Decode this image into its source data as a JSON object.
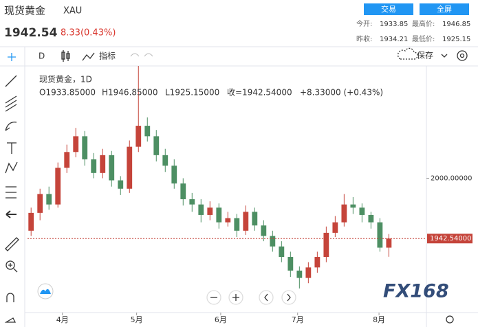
{
  "header": {
    "name": "现货黄金",
    "symbol": "XAU",
    "price": "1942.54",
    "change": "8.33(0.43%)",
    "buttons": [
      "交易",
      "全屏"
    ],
    "stats": [
      [
        "今开:",
        "1933.85"
      ],
      [
        "最高价:",
        "1946.85"
      ],
      [
        "昨收:",
        "1934.21"
      ],
      [
        "最低价:",
        "1925.15"
      ]
    ]
  },
  "toolbar": {
    "interval": "D",
    "indicators": "指标",
    "save": "保存"
  },
  "legend": {
    "title": "现货黄金，1D",
    "open": "O1933.85000",
    "high": "H1946.85000",
    "low": "L1925.15000",
    "close": "收=1942.54000",
    "change": "+8.33000 (+0.43%)"
  },
  "watermark": "FX168",
  "chart_data": {
    "type": "candlestick",
    "up_color": "#c5443a",
    "down_color": "#4d8f63",
    "x": [
      0,
      1,
      2,
      3,
      4,
      5,
      6,
      7,
      8,
      9,
      10,
      11,
      12,
      13,
      14,
      15,
      16,
      17,
      18,
      19,
      20,
      21,
      22,
      23,
      24,
      25,
      26,
      27,
      28,
      29,
      30,
      31,
      32,
      33,
      34,
      35,
      36,
      37,
      38,
      39,
      40
    ],
    "open": [
      1950,
      1967,
      1985,
      1975,
      2010,
      2025,
      2040,
      2018,
      2005,
      2022,
      1998,
      1990,
      2030,
      2050,
      2040,
      2022,
      2012,
      1995,
      1980,
      1975,
      1965,
      1972,
      1958,
      1962,
      1950,
      1968,
      1955,
      1945,
      1935,
      1925,
      1912,
      1905,
      1915,
      1925,
      1948,
      1958,
      1975,
      1972,
      1965,
      1958,
      1933.85
    ],
    "high": [
      1972,
      1990,
      1992,
      2015,
      2032,
      2048,
      2045,
      2024,
      2028,
      2026,
      2002,
      2036,
      2107,
      2058,
      2046,
      2028,
      2018,
      2000,
      1986,
      1980,
      1978,
      1976,
      1968,
      1966,
      1974,
      1972,
      1960,
      1950,
      1940,
      1930,
      1916,
      1920,
      1930,
      1954,
      1964,
      1985,
      1982,
      1976,
      1968,
      1962,
      1946.85
    ],
    "low": [
      1945,
      1960,
      1970,
      1972,
      2005,
      2020,
      2012,
      2000,
      2000,
      1992,
      1984,
      1986,
      2025,
      2035,
      2016,
      2006,
      1990,
      1974,
      1968,
      1958,
      1960,
      1952,
      1954,
      1944,
      1946,
      1950,
      1940,
      1930,
      1920,
      1906,
      1895,
      1900,
      1910,
      1920,
      1944,
      1954,
      1966,
      1958,
      1952,
      1930,
      1925.15
    ],
    "close": [
      1967,
      1985,
      1975,
      2010,
      2025,
      2040,
      2018,
      2005,
      2022,
      1998,
      1990,
      2030,
      2050,
      2040,
      2022,
      2012,
      1995,
      1980,
      1975,
      1965,
      1972,
      1958,
      1962,
      1950,
      1968,
      1955,
      1945,
      1935,
      1925,
      1912,
      1905,
      1915,
      1925,
      1948,
      1958,
      1975,
      1972,
      1965,
      1958,
      1933.85,
      1942.54
    ],
    "xlim": [
      -0.4,
      44.2
    ],
    "xticks": [
      {
        "value": 3.5,
        "label": "4月"
      },
      {
        "value": 11.8,
        "label": "5月"
      },
      {
        "value": 21.2,
        "label": "6月"
      },
      {
        "value": 29.8,
        "label": "7月"
      },
      {
        "value": 38.9,
        "label": "8月"
      }
    ],
    "ylim": [
      1872,
      2107
    ],
    "yticks": [
      {
        "value": 2000,
        "label": "2000.00000"
      }
    ],
    "last_price": {
      "value": 1942.54,
      "label": "1942.54000"
    },
    "grid": false
  }
}
